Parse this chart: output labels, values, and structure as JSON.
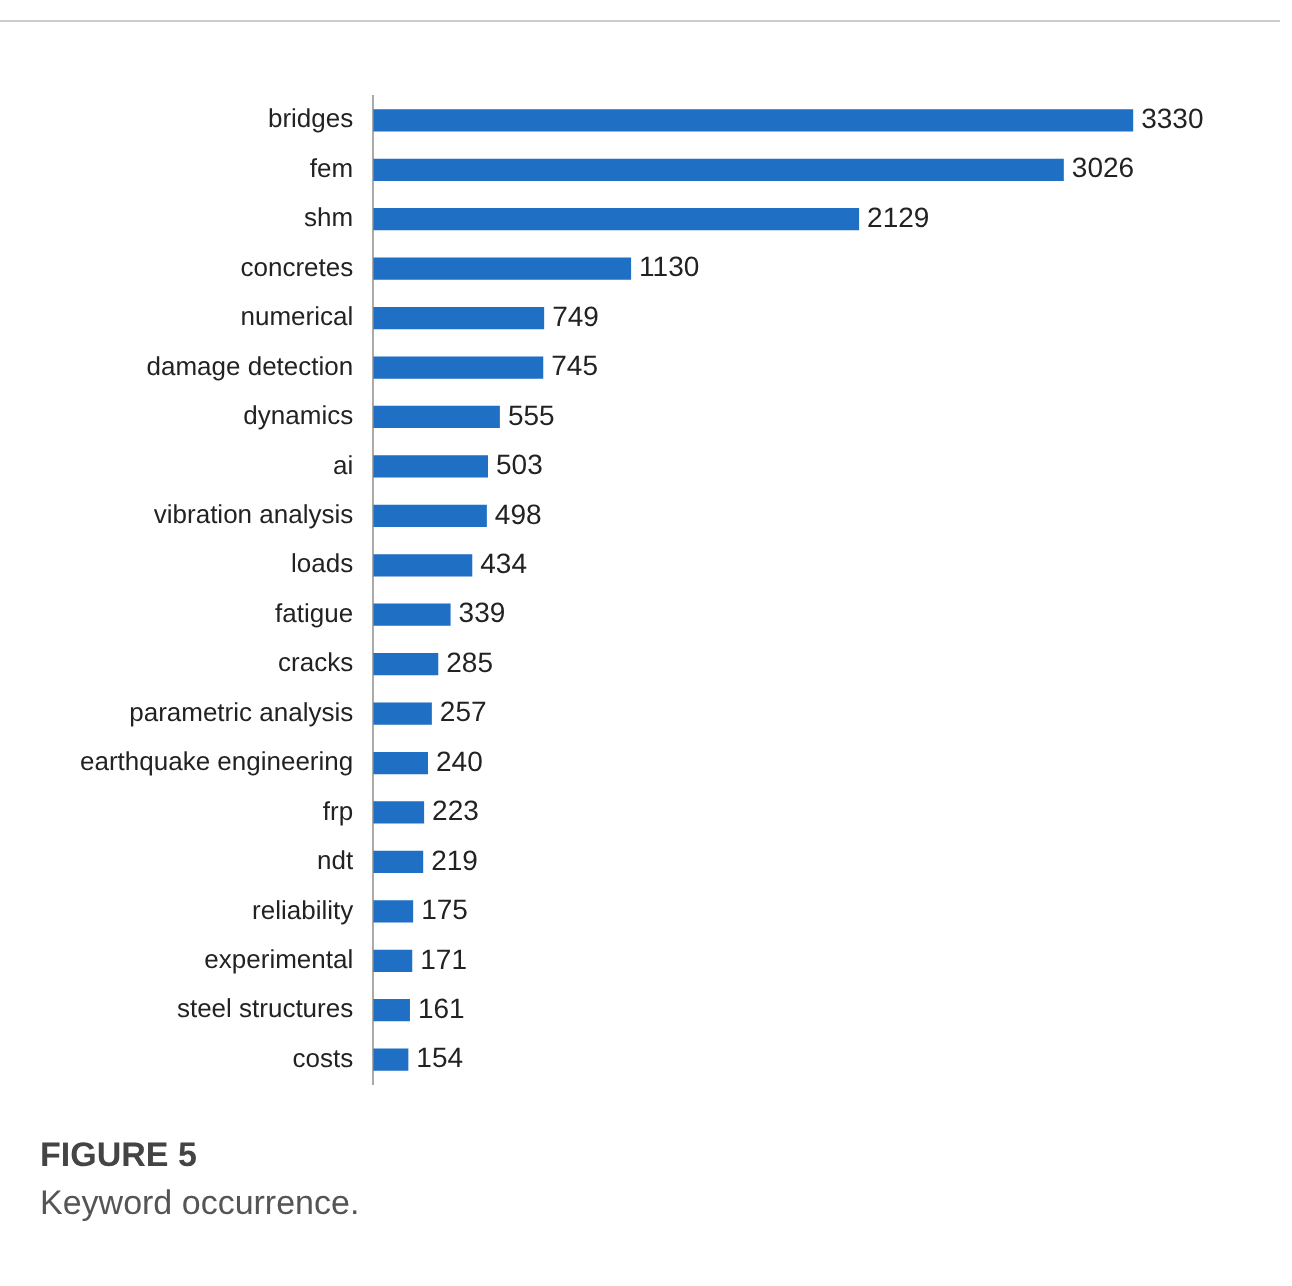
{
  "chart_data": {
    "type": "bar",
    "orientation": "horizontal",
    "data_labels": true,
    "categories": [
      "bridges",
      "fem",
      "shm",
      "concretes",
      "numerical",
      "damage detection",
      "dynamics",
      "ai",
      "vibration analysis",
      "loads",
      "fatigue",
      "cracks",
      "parametric analysis",
      "earthquake engineering",
      "frp",
      "ndt",
      "reliability",
      "experimental",
      "steel structures",
      "costs"
    ],
    "values": [
      3330,
      3026,
      2129,
      1130,
      749,
      745,
      555,
      503,
      498,
      434,
      339,
      285,
      257,
      240,
      223,
      219,
      175,
      171,
      161,
      154
    ],
    "color": "#1f6fc5",
    "annotations": [
      "FIGURE 5",
      "Keyword occurrence."
    ]
  }
}
